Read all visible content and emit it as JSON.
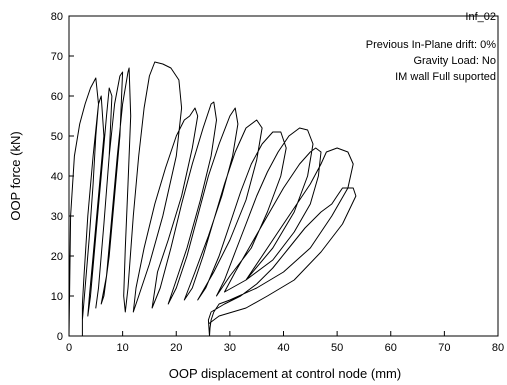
{
  "chart_data": {
    "type": "line",
    "title": "",
    "xlabel": "OOP displacement at control node (mm)",
    "ylabel": "OOP force (kN)",
    "xlim": [
      0,
      80
    ],
    "ylim": [
      0,
      80
    ],
    "xticks": [
      0,
      10,
      20,
      30,
      40,
      50,
      60,
      70,
      80
    ],
    "yticks": [
      0,
      10,
      20,
      30,
      40,
      50,
      60,
      70,
      80
    ],
    "grid": false,
    "legend": {
      "placement": "top-right",
      "series_label": "Inf_02",
      "notes": [
        "Previous In-Plane drift: 0%",
        "Gravity Load: No",
        "IM wall Full suported"
      ]
    },
    "series": [
      {
        "name": "Inf_02",
        "color": "#000000",
        "points": [
          [
            0,
            0
          ],
          [
            0.3,
            30
          ],
          [
            1,
            45
          ],
          [
            2,
            53
          ],
          [
            3,
            58
          ],
          [
            4,
            62
          ],
          [
            5,
            64.5
          ],
          [
            5.5,
            58
          ],
          [
            4.5,
            45
          ],
          [
            3.5,
            30
          ],
          [
            2.8,
            15
          ],
          [
            2.5,
            8
          ],
          [
            2.5,
            0
          ],
          [
            2.5,
            4
          ],
          [
            3,
            12
          ],
          [
            3.8,
            25
          ],
          [
            4.5,
            38
          ],
          [
            5,
            50
          ],
          [
            5.5,
            58
          ],
          [
            6,
            60
          ],
          [
            6.5,
            50
          ],
          [
            5.5,
            35
          ],
          [
            4.5,
            20
          ],
          [
            3.8,
            10
          ],
          [
            3.5,
            5
          ],
          [
            4,
            10
          ],
          [
            5,
            25
          ],
          [
            6,
            40
          ],
          [
            7,
            55
          ],
          [
            7.5,
            62
          ],
          [
            8,
            60
          ],
          [
            7.5,
            45
          ],
          [
            6.5,
            28
          ],
          [
            5.5,
            12
          ],
          [
            5,
            7
          ],
          [
            5.5,
            12
          ],
          [
            6.5,
            28
          ],
          [
            7.5,
            45
          ],
          [
            8.5,
            58
          ],
          [
            9.5,
            65
          ],
          [
            10,
            66
          ],
          [
            9.5,
            50
          ],
          [
            8.5,
            35
          ],
          [
            7.5,
            20
          ],
          [
            6.5,
            10
          ],
          [
            6,
            8
          ],
          [
            7,
            15
          ],
          [
            8,
            30
          ],
          [
            9,
            45
          ],
          [
            10,
            58
          ],
          [
            11,
            66
          ],
          [
            11.2,
            67
          ],
          [
            11.5,
            55
          ],
          [
            11,
            38
          ],
          [
            10.5,
            22
          ],
          [
            10.2,
            10
          ],
          [
            10.5,
            6
          ],
          [
            11,
            12
          ],
          [
            12,
            30
          ],
          [
            13,
            45
          ],
          [
            14,
            57
          ],
          [
            15,
            65
          ],
          [
            16,
            68.5
          ],
          [
            17.5,
            68
          ],
          [
            19,
            67
          ],
          [
            20.5,
            64
          ],
          [
            21,
            57
          ],
          [
            20,
            45
          ],
          [
            17.5,
            30
          ],
          [
            15,
            18
          ],
          [
            13,
            10
          ],
          [
            12,
            6
          ],
          [
            12.5,
            12
          ],
          [
            14,
            22
          ],
          [
            16,
            33
          ],
          [
            18,
            42
          ],
          [
            20,
            50
          ],
          [
            21.5,
            54
          ],
          [
            22.5,
            55
          ],
          [
            23.5,
            57
          ],
          [
            24,
            55
          ],
          [
            23,
            47
          ],
          [
            21,
            35
          ],
          [
            18.5,
            24
          ],
          [
            16.5,
            16
          ],
          [
            15.5,
            7
          ],
          [
            17,
            12
          ],
          [
            19,
            22
          ],
          [
            21,
            33
          ],
          [
            23,
            43
          ],
          [
            25,
            52
          ],
          [
            26.5,
            58
          ],
          [
            27,
            58.5
          ],
          [
            27.5,
            54
          ],
          [
            26.5,
            45
          ],
          [
            24.5,
            34
          ],
          [
            22,
            22
          ],
          [
            20,
            14
          ],
          [
            18.5,
            8
          ],
          [
            20,
            12
          ],
          [
            22,
            20
          ],
          [
            24,
            30
          ],
          [
            26,
            40
          ],
          [
            28,
            48
          ],
          [
            30,
            55
          ],
          [
            31,
            57
          ],
          [
            31.5,
            53
          ],
          [
            30.5,
            45
          ],
          [
            28.5,
            35
          ],
          [
            26,
            25
          ],
          [
            23.5,
            16
          ],
          [
            21.5,
            9
          ],
          [
            23,
            12
          ],
          [
            25,
            20
          ],
          [
            27,
            29
          ],
          [
            29,
            38
          ],
          [
            31,
            46
          ],
          [
            33,
            52
          ],
          [
            35,
            54
          ],
          [
            36,
            52
          ],
          [
            35,
            44
          ],
          [
            33,
            34
          ],
          [
            30,
            24
          ],
          [
            27,
            16
          ],
          [
            24,
            9
          ],
          [
            25.5,
            12
          ],
          [
            28,
            20
          ],
          [
            30,
            28
          ],
          [
            32,
            36
          ],
          [
            34,
            43
          ],
          [
            36,
            48
          ],
          [
            38,
            51
          ],
          [
            39.5,
            51
          ],
          [
            40.5,
            47
          ],
          [
            39.5,
            40
          ],
          [
            37,
            31
          ],
          [
            34,
            22
          ],
          [
            30,
            15
          ],
          [
            27.5,
            10
          ],
          [
            29,
            14
          ],
          [
            31,
            21
          ],
          [
            33,
            28
          ],
          [
            35,
            35
          ],
          [
            37,
            41
          ],
          [
            39,
            46
          ],
          [
            41,
            50
          ],
          [
            43,
            52
          ],
          [
            44.5,
            51.5
          ],
          [
            45.5,
            48
          ],
          [
            44.5,
            40
          ],
          [
            42,
            31
          ],
          [
            38,
            22
          ],
          [
            33,
            14
          ],
          [
            29,
            11
          ],
          [
            31,
            16
          ],
          [
            34,
            23
          ],
          [
            37,
            30
          ],
          [
            40,
            37
          ],
          [
            43,
            43
          ],
          [
            45,
            46
          ],
          [
            46,
            47
          ],
          [
            47,
            46
          ],
          [
            46.5,
            40
          ],
          [
            45,
            33
          ],
          [
            42,
            26
          ],
          [
            38,
            19
          ],
          [
            33,
            14
          ],
          [
            36,
            20
          ],
          [
            39,
            26
          ],
          [
            42,
            32
          ],
          [
            45,
            38
          ],
          [
            47,
            43
          ],
          [
            48,
            46
          ],
          [
            50,
            47
          ],
          [
            52,
            46
          ],
          [
            53,
            43
          ],
          [
            52,
            37
          ],
          [
            49,
            30
          ],
          [
            45,
            22
          ],
          [
            40,
            16
          ],
          [
            35,
            12
          ],
          [
            30,
            9
          ],
          [
            28,
            8
          ],
          [
            27,
            6
          ],
          [
            26.5,
            4
          ],
          [
            26.3,
            2
          ],
          [
            26.2,
            0
          ],
          [
            26,
            4
          ],
          [
            26.5,
            6
          ],
          [
            29,
            8
          ],
          [
            32,
            10
          ],
          [
            35,
            13
          ],
          [
            38,
            17
          ],
          [
            41,
            22
          ],
          [
            44,
            27
          ],
          [
            47,
            31
          ],
          [
            49,
            33
          ],
          [
            50,
            35
          ],
          [
            51,
            37
          ],
          [
            53,
            37
          ],
          [
            53.5,
            35
          ],
          [
            51,
            28
          ],
          [
            47,
            21
          ],
          [
            42,
            14
          ],
          [
            37,
            10
          ],
          [
            33,
            7
          ],
          [
            28,
            5
          ],
          [
            26,
            3
          ]
        ]
      }
    ]
  }
}
